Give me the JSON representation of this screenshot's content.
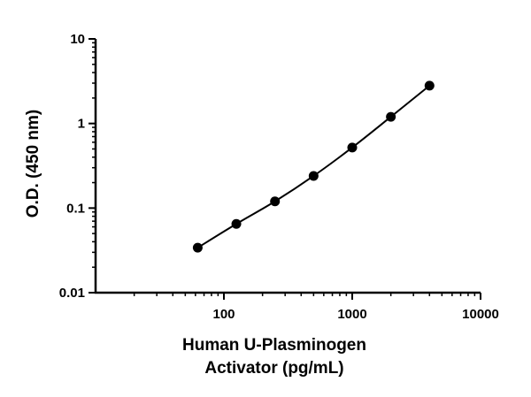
{
  "chart_data": {
    "type": "scatter",
    "xlabel": [
      "Human U-Plasminogen",
      "Activator (pg/mL)"
    ],
    "ylabel": "O.D. (450 nm)",
    "xscale": "log",
    "yscale": "log",
    "xlim": [
      10,
      10000
    ],
    "ylim": [
      0.01,
      10
    ],
    "x_ticks": [
      {
        "value": 100,
        "label": "100"
      },
      {
        "value": 1000,
        "label": "1000"
      },
      {
        "value": 10000,
        "label": "10000"
      }
    ],
    "y_ticks": [
      {
        "value": 0.01,
        "label": "0.01"
      },
      {
        "value": 0.1,
        "label": "0.1"
      },
      {
        "value": 1,
        "label": "1"
      },
      {
        "value": 10,
        "label": "10"
      }
    ],
    "grid": false,
    "series": [
      {
        "points": [
          {
            "x": 62.5,
            "y": 0.034
          },
          {
            "x": 125,
            "y": 0.065
          },
          {
            "x": 250,
            "y": 0.12
          },
          {
            "x": 500,
            "y": 0.24
          },
          {
            "x": 1000,
            "y": 0.52
          },
          {
            "x": 2000,
            "y": 1.2
          },
          {
            "x": 4000,
            "y": 2.8
          }
        ],
        "fit": "smooth curve"
      }
    ],
    "colors": {
      "marker": "#000000",
      "line": "#000000",
      "axis": "#000000"
    }
  }
}
